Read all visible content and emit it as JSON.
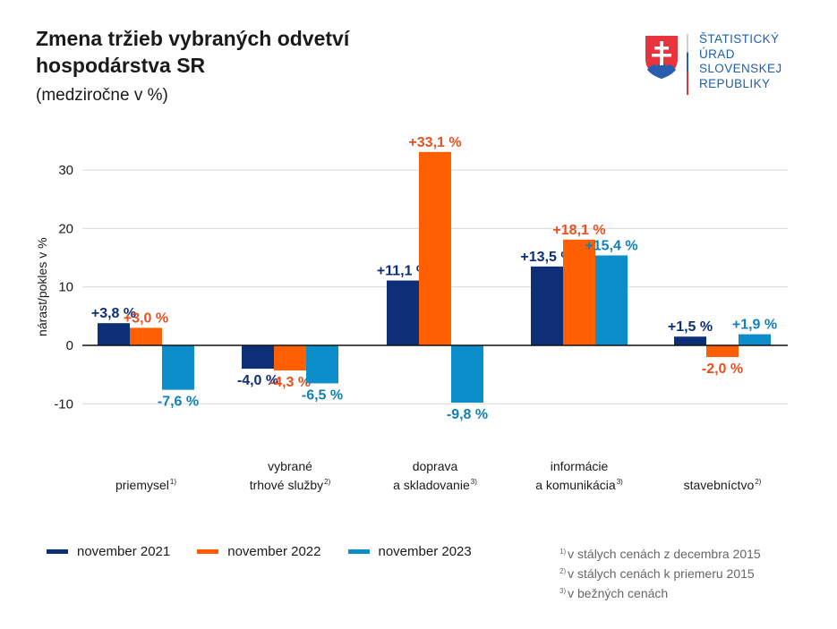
{
  "header": {
    "title_lines": [
      "Zmena tržieb vybraných odvetví",
      "hospodárstva SR"
    ],
    "subtitle": "(medziročne v %)"
  },
  "logo": {
    "icon": "slovak-coat-of-arms-icon",
    "text_lines": [
      "ŠTATISTICKÝ",
      "ÚRAD",
      "SLOVENSKEJ",
      "REPUBLIKY"
    ]
  },
  "chart_data": {
    "type": "bar",
    "title": "Zmena tržieb vybraných odvetví hospodárstva SR",
    "subtitle": "(medziročne v %)",
    "xlabel": "",
    "ylabel": "nárast/pokles v %",
    "ylim": [
      -12,
      35
    ],
    "yticks": [
      30,
      20,
      10,
      0,
      -10
    ],
    "grid": true,
    "legend_position": "bottom-left",
    "categories": [
      {
        "lines": [
          "priemysel"
        ],
        "note": "1)"
      },
      {
        "lines": [
          "vybrané",
          "trhové služby"
        ],
        "note": "2)"
      },
      {
        "lines": [
          "doprava",
          "a skladovanie"
        ],
        "note": "3)"
      },
      {
        "lines": [
          "informácie",
          "a komunikácia"
        ],
        "note": "3)"
      },
      {
        "lines": [
          "stavebníctvo"
        ],
        "note": "2)"
      }
    ],
    "series": [
      {
        "name": "november 2021",
        "color": "#0d2f78",
        "values": [
          3.8,
          -4.0,
          11.1,
          13.5,
          1.5
        ],
        "labels": [
          "+3,8 %",
          "-4,0 %",
          "+11,1 %",
          "+13,5 %",
          "+1,5 %"
        ],
        "label_color": "#0d2f78"
      },
      {
        "name": "november 2022",
        "color": "#ff5f00",
        "values": [
          3.0,
          -4.3,
          33.1,
          18.1,
          -2.0
        ],
        "labels": [
          "+3,0 %",
          "-4,3 %",
          "+33,1 %",
          "+18,1 %",
          "-2,0 %"
        ],
        "label_color": "#e8501e"
      },
      {
        "name": "november 2023",
        "color": "#0b8ec9",
        "values": [
          -7.6,
          -6.5,
          -9.8,
          15.4,
          1.9
        ],
        "labels": [
          "-7,6 %",
          "-6,5 %",
          "-9,8 %",
          "+15,4 %",
          "+1,9 %"
        ],
        "label_color": "#1180b8"
      }
    ]
  },
  "footnotes": [
    {
      "mark": "1)",
      "text": "v stálych cenách z decembra 2015"
    },
    {
      "mark": "2)",
      "text": "v stálych cenách k priemeru 2015"
    },
    {
      "mark": "3)",
      "text": "v bežných cenách"
    }
  ]
}
